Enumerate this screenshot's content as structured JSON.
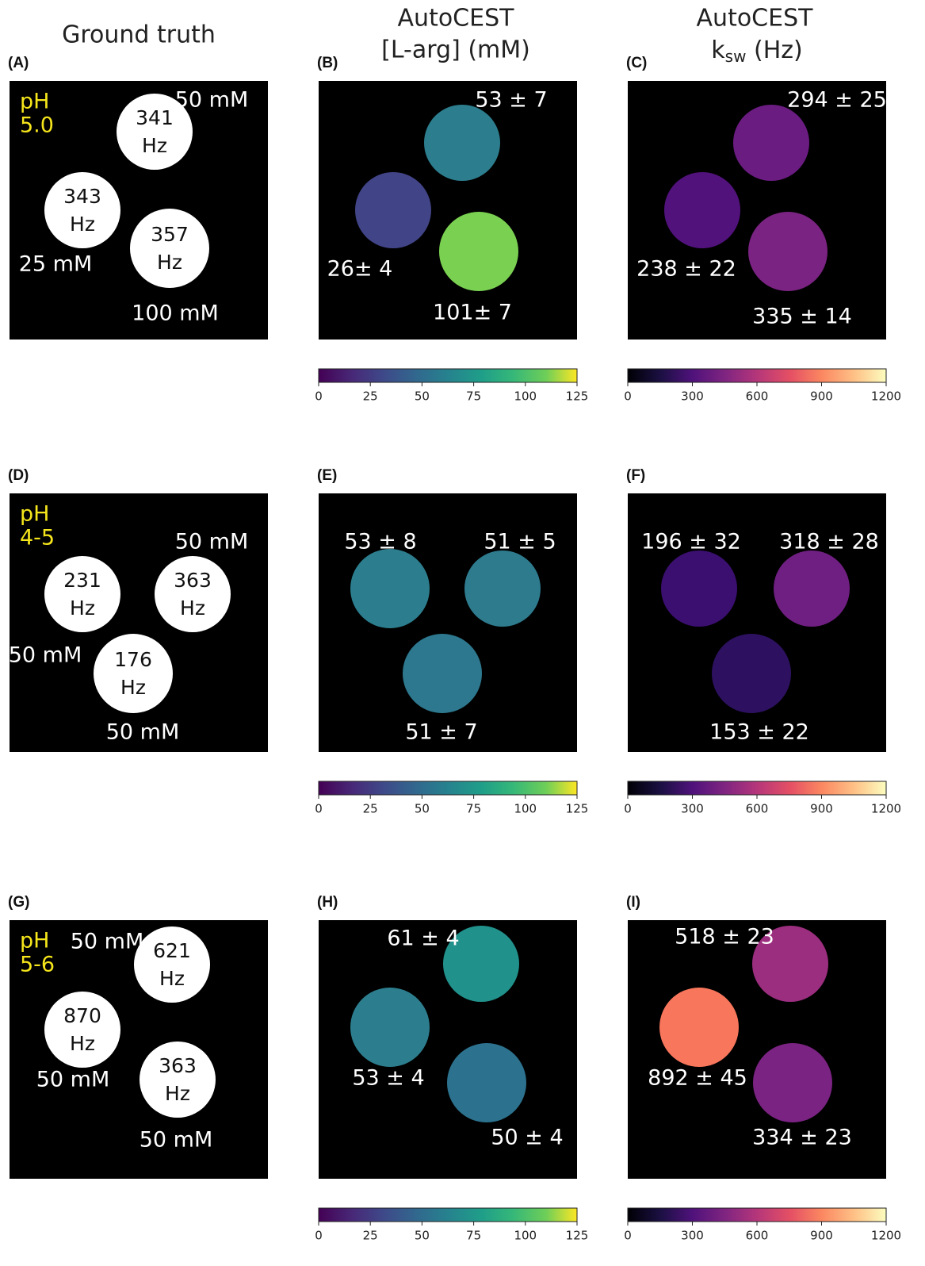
{
  "headers": {
    "ground_truth": "Ground truth",
    "conc_title": "AutoCEST",
    "conc_unit": "[L-arg] (mM)",
    "ksw_title": "AutoCEST",
    "ksw_k": "k",
    "ksw_sub": "sw",
    "ksw_unit": " (Hz)"
  },
  "panels": [
    {
      "label": "(A)",
      "ph": "pH",
      "ph_value": "5.0",
      "tubes": [
        {
          "rate": "341",
          "unit": "Hz"
        },
        {
          "rate": "343",
          "unit": "Hz"
        },
        {
          "rate": "357",
          "unit": "Hz"
        }
      ],
      "notes": [
        "50 mM",
        "25 mM",
        "100 mM"
      ]
    },
    {
      "label": "(B)",
      "notes": [
        "53 ± 7",
        "26± 4",
        "101± 7"
      ],
      "colorbar": {
        "ticks": [
          0,
          25,
          50,
          75,
          100,
          125
        ]
      }
    },
    {
      "label": "(C)",
      "notes": [
        "294 ± 25",
        "238 ± 22",
        "335 ± 14"
      ],
      "colorbar": {
        "ticks": [
          0,
          300,
          600,
          900,
          1200
        ]
      }
    },
    {
      "label": "(D)",
      "ph": "pH",
      "ph_value": "4-5",
      "tubes": [
        {
          "rate": "231",
          "unit": "Hz"
        },
        {
          "rate": "363",
          "unit": "Hz"
        },
        {
          "rate": "176",
          "unit": "Hz"
        }
      ],
      "notes": [
        "50 mM",
        "50 mM",
        "50 mM"
      ]
    },
    {
      "label": "(E)",
      "notes": [
        "53 ± 8",
        "51 ± 5",
        "51 ± 7"
      ],
      "colorbar": {
        "ticks": [
          0,
          25,
          50,
          75,
          100,
          125
        ]
      }
    },
    {
      "label": "(F)",
      "notes": [
        "196 ± 32",
        "318 ± 28",
        "153 ± 22"
      ],
      "colorbar": {
        "ticks": [
          0,
          300,
          600,
          900,
          1200
        ]
      }
    },
    {
      "label": "(G)",
      "ph": "pH",
      "ph_value": "5-6",
      "tubes": [
        {
          "rate": "621",
          "unit": "Hz"
        },
        {
          "rate": "870",
          "unit": "Hz"
        },
        {
          "rate": "363",
          "unit": "Hz"
        }
      ],
      "notes": [
        "50 mM",
        "50 mM",
        "50 mM"
      ]
    },
    {
      "label": "(H)",
      "notes": [
        "61 ± 4",
        "53 ± 4",
        "50 ± 4"
      ],
      "colorbar": {
        "ticks": [
          0,
          25,
          50,
          75,
          100,
          125
        ]
      }
    },
    {
      "label": "(I)",
      "notes": [
        "518 ± 23",
        "892 ± 45",
        "334 ± 23"
      ],
      "colorbar": {
        "ticks": [
          0,
          300,
          600,
          900,
          1200
        ]
      }
    }
  ]
}
